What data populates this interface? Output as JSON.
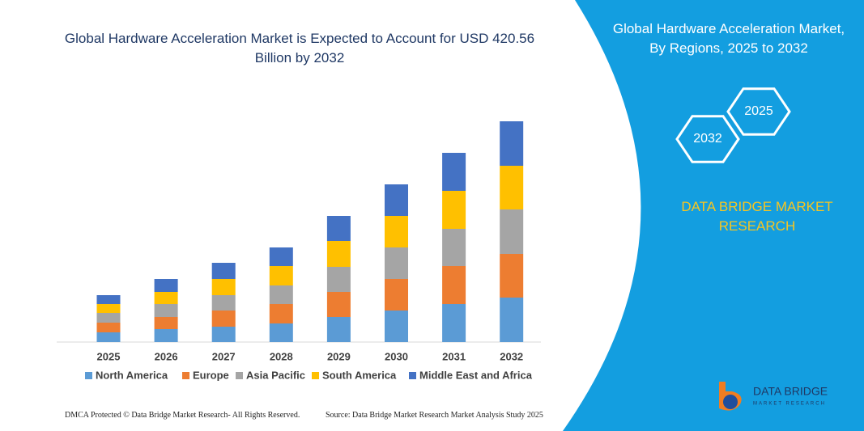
{
  "chart_data": {
    "type": "stacked-bar",
    "title": "Global Hardware Acceleration Market is Expected to Account for USD 420.56 Billion by 2032",
    "categories": [
      "2025",
      "2026",
      "2027",
      "2028",
      "2029",
      "2030",
      "2031",
      "2032"
    ],
    "series": [
      {
        "name": "North America",
        "color": "#5b9bd5",
        "values": [
          12,
          16,
          19,
          23,
          31,
          39,
          47,
          55
        ]
      },
      {
        "name": "Europe",
        "color": "#ed7d31",
        "values": [
          12,
          15,
          20,
          24,
          31,
          39,
          47,
          54
        ]
      },
      {
        "name": "Asia Pacific",
        "color": "#a5a5a5",
        "values": [
          12,
          16,
          19,
          23,
          31,
          39,
          46,
          55
        ]
      },
      {
        "name": "South America",
        "color": "#ffc000",
        "values": [
          11,
          15,
          20,
          24,
          32,
          39,
          47,
          54
        ]
      },
      {
        "name": "Middle East and Africa",
        "color": "#4472c4",
        "values": [
          11,
          16,
          20,
          23,
          31,
          39,
          47,
          55
        ]
      }
    ]
  },
  "panel": {
    "title": "Global Hardware Acceleration Market, By Regions, 2025 to 2032",
    "hex_labels": [
      "2025",
      "2032"
    ],
    "brand": "DATA BRIDGE MARKET RESEARCH"
  },
  "logo": {
    "name": "DATA BRIDGE",
    "tagline": "MARKET RESEARCH"
  },
  "footer": {
    "left": "DMCA Protected © Data Bridge Market Research- All Rights Reserved.",
    "right": "Source: Data Bridge Market Research Market Analysis Study 2025"
  }
}
